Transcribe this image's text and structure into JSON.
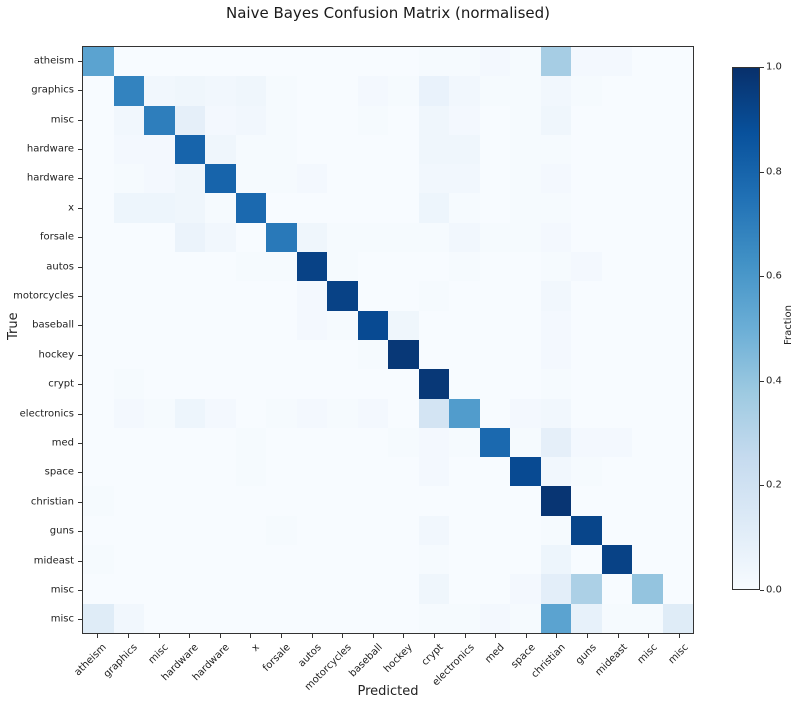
{
  "title": "Naive Bayes Confusion Matrix (normalised)",
  "xlabel": "Predicted",
  "ylabel": "True",
  "colorbar": {
    "label": "Fraction",
    "ticks": [
      "0.0",
      "0.2",
      "0.4",
      "0.6",
      "0.8",
      "1.0"
    ]
  },
  "chart_data": {
    "type": "heatmap",
    "title": "Naive Bayes Confusion Matrix (normalised)",
    "xlabel": "Predicted",
    "ylabel": "True",
    "colormap": "Blues",
    "vmin": 0.0,
    "vmax": 1.0,
    "colorbar_label": "Fraction",
    "colorbar_ticks": [
      0.0,
      0.2,
      0.4,
      0.6,
      0.8,
      1.0
    ],
    "x_categories": [
      "atheism",
      "graphics",
      "misc",
      "hardware",
      "hardware",
      "x",
      "forsale",
      "autos",
      "motorcycles",
      "baseball",
      "hockey",
      "crypt",
      "electronics",
      "med",
      "space",
      "christian",
      "guns",
      "mideast",
      "misc",
      "misc"
    ],
    "y_categories": [
      "atheism",
      "graphics",
      "misc",
      "hardware",
      "hardware",
      "x",
      "forsale",
      "autos",
      "motorcycles",
      "baseball",
      "hockey",
      "crypt",
      "electronics",
      "med",
      "space",
      "christian",
      "guns",
      "mideast",
      "misc",
      "misc"
    ],
    "matrix": [
      [
        0.55,
        0.0,
        0.0,
        0.0,
        0.0,
        0.0,
        0.0,
        0.0,
        0.0,
        0.0,
        0.0,
        0.01,
        0.01,
        0.02,
        0.01,
        0.35,
        0.02,
        0.02,
        0.0,
        0.0
      ],
      [
        0.0,
        0.68,
        0.03,
        0.04,
        0.03,
        0.04,
        0.01,
        0.0,
        0.0,
        0.02,
        0.01,
        0.07,
        0.03,
        0.01,
        0.01,
        0.03,
        0.01,
        0.0,
        0.0,
        0.0
      ],
      [
        0.0,
        0.03,
        0.7,
        0.09,
        0.02,
        0.03,
        0.01,
        0.0,
        0.0,
        0.01,
        0.0,
        0.04,
        0.02,
        0.0,
        0.01,
        0.04,
        0.0,
        0.0,
        0.0,
        0.0
      ],
      [
        0.0,
        0.02,
        0.02,
        0.8,
        0.04,
        0.01,
        0.01,
        0.0,
        0.0,
        0.0,
        0.0,
        0.04,
        0.04,
        0.0,
        0.01,
        0.01,
        0.0,
        0.0,
        0.0,
        0.0
      ],
      [
        0.0,
        0.01,
        0.02,
        0.04,
        0.8,
        0.01,
        0.01,
        0.02,
        0.0,
        0.0,
        0.0,
        0.03,
        0.03,
        0.0,
        0.01,
        0.02,
        0.0,
        0.0,
        0.0,
        0.0
      ],
      [
        0.0,
        0.05,
        0.05,
        0.04,
        0.01,
        0.78,
        0.0,
        0.0,
        0.0,
        0.0,
        0.0,
        0.05,
        0.01,
        0.0,
        0.01,
        0.01,
        0.0,
        0.0,
        0.0,
        0.0
      ],
      [
        0.0,
        0.0,
        0.0,
        0.06,
        0.03,
        0.0,
        0.72,
        0.04,
        0.01,
        0.01,
        0.01,
        0.01,
        0.03,
        0.01,
        0.01,
        0.02,
        0.0,
        0.0,
        0.0,
        0.0
      ],
      [
        0.0,
        0.0,
        0.0,
        0.0,
        0.0,
        0.01,
        0.01,
        0.93,
        0.01,
        0.0,
        0.0,
        0.0,
        0.01,
        0.0,
        0.0,
        0.01,
        0.02,
        0.0,
        0.0,
        0.0
      ],
      [
        0.0,
        0.0,
        0.0,
        0.0,
        0.0,
        0.0,
        0.0,
        0.02,
        0.93,
        0.0,
        0.0,
        0.01,
        0.0,
        0.0,
        0.0,
        0.03,
        0.0,
        0.0,
        0.0,
        0.0
      ],
      [
        0.0,
        0.0,
        0.0,
        0.0,
        0.0,
        0.0,
        0.0,
        0.02,
        0.01,
        0.9,
        0.04,
        0.0,
        0.0,
        0.0,
        0.0,
        0.02,
        0.0,
        0.0,
        0.0,
        0.0
      ],
      [
        0.0,
        0.0,
        0.0,
        0.0,
        0.0,
        0.0,
        0.0,
        0.0,
        0.0,
        0.01,
        0.97,
        0.0,
        0.0,
        0.0,
        0.0,
        0.02,
        0.0,
        0.0,
        0.0,
        0.0
      ],
      [
        0.0,
        0.01,
        0.0,
        0.0,
        0.0,
        0.0,
        0.0,
        0.0,
        0.0,
        0.0,
        0.0,
        0.97,
        0.0,
        0.0,
        0.0,
        0.01,
        0.0,
        0.0,
        0.0,
        0.0
      ],
      [
        0.0,
        0.02,
        0.01,
        0.05,
        0.02,
        0.0,
        0.01,
        0.02,
        0.01,
        0.02,
        0.0,
        0.18,
        0.58,
        0.0,
        0.02,
        0.03,
        0.0,
        0.0,
        0.0,
        0.0
      ],
      [
        0.0,
        0.0,
        0.0,
        0.0,
        0.0,
        0.01,
        0.0,
        0.0,
        0.0,
        0.0,
        0.01,
        0.02,
        0.01,
        0.78,
        0.01,
        0.09,
        0.02,
        0.02,
        0.0,
        0.0
      ],
      [
        0.0,
        0.0,
        0.0,
        0.0,
        0.0,
        0.01,
        0.0,
        0.0,
        0.0,
        0.0,
        0.0,
        0.02,
        0.0,
        0.0,
        0.9,
        0.03,
        0.01,
        0.0,
        0.0,
        0.0
      ],
      [
        0.01,
        0.0,
        0.0,
        0.0,
        0.0,
        0.0,
        0.0,
        0.0,
        0.0,
        0.0,
        0.0,
        0.0,
        0.0,
        0.0,
        0.0,
        0.98,
        0.0,
        0.0,
        0.0,
        0.0
      ],
      [
        0.0,
        0.0,
        0.0,
        0.0,
        0.0,
        0.0,
        0.01,
        0.0,
        0.0,
        0.0,
        0.0,
        0.03,
        0.0,
        0.0,
        0.0,
        0.01,
        0.92,
        0.0,
        0.0,
        0.0
      ],
      [
        0.01,
        0.0,
        0.0,
        0.0,
        0.0,
        0.0,
        0.0,
        0.0,
        0.0,
        0.0,
        0.0,
        0.01,
        0.0,
        0.0,
        0.0,
        0.05,
        0.0,
        0.93,
        0.0,
        0.0
      ],
      [
        0.0,
        0.0,
        0.0,
        0.0,
        0.0,
        0.0,
        0.0,
        0.0,
        0.0,
        0.0,
        0.0,
        0.04,
        0.0,
        0.0,
        0.02,
        0.1,
        0.33,
        0.0,
        0.4,
        0.0
      ],
      [
        0.12,
        0.03,
        0.0,
        0.0,
        0.0,
        0.0,
        0.0,
        0.0,
        0.0,
        0.0,
        0.0,
        0.01,
        0.01,
        0.02,
        0.01,
        0.55,
        0.08,
        0.01,
        0.01,
        0.12
      ]
    ]
  }
}
